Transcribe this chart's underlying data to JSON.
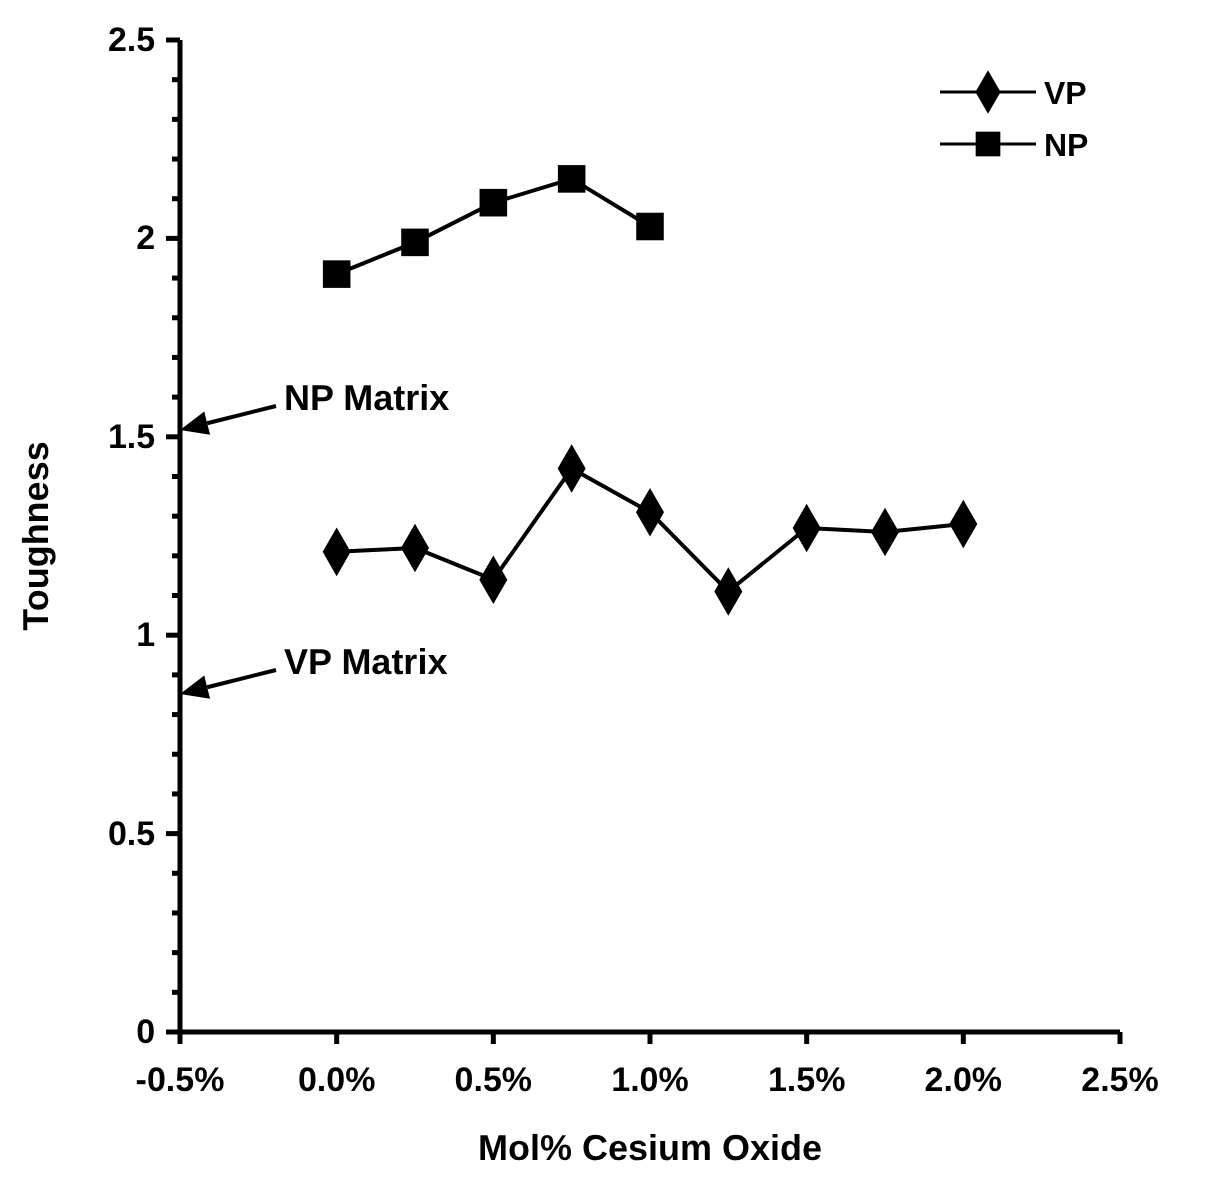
{
  "chart_data": {
    "type": "line",
    "xlabel": "Mol% Cesium Oxide",
    "ylabel": "Toughness",
    "xlim": [
      -0.005,
      0.025
    ],
    "xticks": [
      {
        "value": -0.005,
        "label": "-0.5%"
      },
      {
        "value": 0,
        "label": "0.0%"
      },
      {
        "value": 0.005,
        "label": "0.5%"
      },
      {
        "value": 0.01,
        "label": "1.0%"
      },
      {
        "value": 0.015,
        "label": "1.5%"
      },
      {
        "value": 0.02,
        "label": "2.0%"
      },
      {
        "value": 0.025,
        "label": "2.5%"
      }
    ],
    "ylim": [
      0,
      2.5
    ],
    "yticks": [
      0,
      {
        "value": 0.1,
        "label": null
      },
      {
        "value": 0.2,
        "label": null
      },
      {
        "value": 0.3,
        "label": null
      },
      {
        "value": 0.4,
        "label": null
      },
      0.5,
      {
        "value": 0.6,
        "label": null
      },
      {
        "value": 0.7,
        "label": null
      },
      {
        "value": 0.8,
        "label": null
      },
      {
        "value": 0.9,
        "label": null
      },
      1,
      {
        "value": 1.1,
        "label": null
      },
      {
        "value": 1.2,
        "label": null
      },
      {
        "value": 1.3,
        "label": null
      },
      {
        "value": 1.4,
        "label": null
      },
      1.5,
      {
        "value": 1.6,
        "label": null
      },
      {
        "value": 1.7,
        "label": null
      },
      {
        "value": 1.8,
        "label": null
      },
      {
        "value": 1.9,
        "label": null
      },
      2,
      {
        "value": 2.1,
        "label": null
      },
      {
        "value": 2.2,
        "label": null
      },
      {
        "value": 2.3,
        "label": null
      },
      {
        "value": 2.4,
        "label": null
      },
      2.5
    ],
    "series": [
      {
        "name": "VP",
        "color": "#000000",
        "marker": "diamond",
        "x": [
          0,
          0.0025,
          0.005,
          0.0075,
          0.01,
          0.0125,
          0.015,
          0.0175,
          0.02
        ],
        "values": [
          1.21,
          1.22,
          1.14,
          1.42,
          1.31,
          1.11,
          1.27,
          1.26,
          1.28
        ]
      },
      {
        "name": "NP",
        "color": "#000000",
        "marker": "square",
        "x": [
          0,
          0.0025,
          0.005,
          0.0075,
          0.01
        ],
        "values": [
          1.91,
          1.99,
          2.09,
          2.15,
          2.03
        ]
      }
    ],
    "annotations": [
      "NP Matrix",
      "VP Matrix"
    ],
    "legend": "top right",
    "grid": false,
    "line_style": "solid"
  }
}
